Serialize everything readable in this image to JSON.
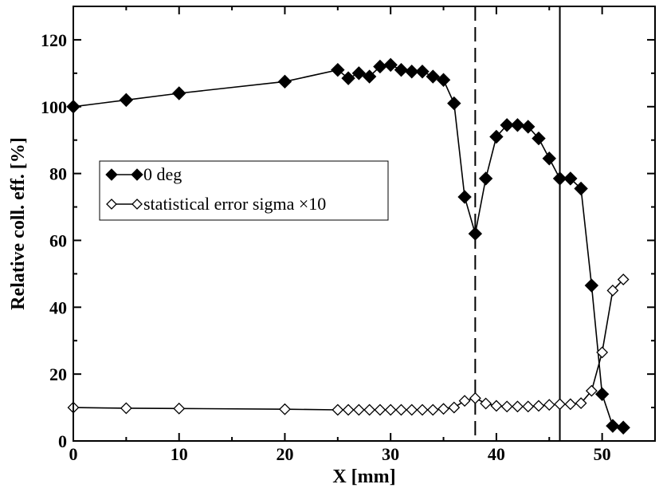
{
  "chart_data": {
    "type": "line",
    "title": "",
    "xlabel": "X [mm]",
    "ylabel": "Relative coll. eff. [%]",
    "xlim": [
      0,
      55
    ],
    "ylim": [
      0,
      130
    ],
    "xticks": [
      0,
      10,
      20,
      30,
      40,
      50
    ],
    "yticks": [
      0,
      20,
      40,
      60,
      80,
      100,
      120
    ],
    "grid": false,
    "legend_position": "left-middle",
    "vertical_lines": [
      {
        "x": 38,
        "style": "dashed"
      },
      {
        "x": 46,
        "style": "solid"
      }
    ],
    "series": [
      {
        "name": "0 deg",
        "marker": "filled-diamond",
        "color": "#000000",
        "x": [
          0,
          5,
          10,
          20,
          25,
          26,
          27,
          28,
          29,
          30,
          31,
          32,
          33,
          34,
          35,
          36,
          37,
          38,
          39,
          40,
          41,
          42,
          43,
          44,
          45,
          46,
          47,
          48,
          49,
          50,
          51,
          52
        ],
        "y": [
          100,
          102,
          104,
          107.5,
          111,
          108.5,
          110,
          109,
          112,
          112.5,
          111,
          110.5,
          110.5,
          109,
          108,
          101,
          73,
          62,
          78.5,
          91,
          94.5,
          94.5,
          94,
          90.5,
          84.5,
          78.5,
          78.5,
          75.5,
          46.5,
          14,
          4.5,
          4
        ]
      },
      {
        "name": "statistical error sigma ×10",
        "marker": "open-diamond",
        "color": "#000000",
        "x": [
          0,
          5,
          10,
          20,
          25,
          26,
          27,
          28,
          29,
          30,
          31,
          32,
          33,
          34,
          35,
          36,
          37,
          38,
          39,
          40,
          41,
          42,
          43,
          44,
          45,
          46,
          47,
          48,
          49,
          50,
          51,
          52
        ],
        "y": [
          10,
          9.8,
          9.7,
          9.5,
          9.3,
          9.3,
          9.3,
          9.3,
          9.3,
          9.3,
          9.3,
          9.3,
          9.3,
          9.3,
          9.6,
          10,
          12,
          12.8,
          11.2,
          10.5,
          10.3,
          10.3,
          10.3,
          10.5,
          10.8,
          11,
          11,
          11.3,
          15,
          26.5,
          45,
          48.3
        ]
      }
    ]
  }
}
